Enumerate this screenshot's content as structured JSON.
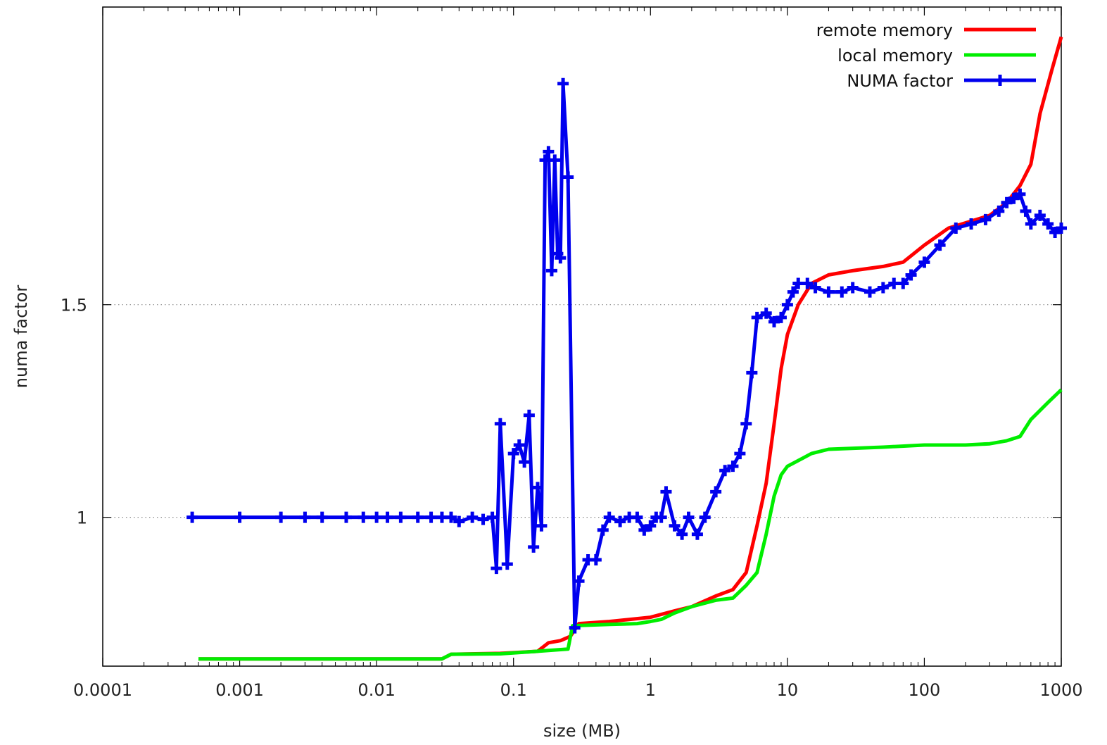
{
  "chart_data": {
    "type": "line",
    "title": "",
    "xlabel": "size (MB)",
    "ylabel": "numa factor",
    "x_scale": "log",
    "xlim": [
      0.0001,
      1000
    ],
    "ylim": [
      0.65,
      2.2
    ],
    "x_ticks": [
      0.0001,
      0.001,
      0.01,
      0.1,
      1,
      10,
      100,
      1000
    ],
    "x_tick_labels": [
      "0.0001",
      "0.001",
      "0.01",
      "0.1",
      "1",
      "10",
      "100",
      "1000"
    ],
    "y_ticks": [
      1,
      1.5
    ],
    "y_tick_labels": [
      "1",
      "1.5"
    ],
    "grid": "horizontal dotted at y ticks",
    "legend_position": "top-right",
    "series": [
      {
        "name": "remote memory",
        "color": "#ff0000",
        "x": [
          0.0005,
          0.03,
          0.035,
          0.08,
          0.15,
          0.18,
          0.22,
          0.26,
          0.3,
          0.5,
          1,
          1.5,
          2,
          3,
          4,
          5,
          6,
          7,
          8,
          9,
          10,
          12,
          15,
          20,
          30,
          50,
          70,
          100,
          150,
          300,
          400,
          500,
          600,
          700,
          850,
          1000
        ],
        "y": [
          0.667,
          0.667,
          0.678,
          0.68,
          0.685,
          0.705,
          0.71,
          0.72,
          0.75,
          0.755,
          0.765,
          0.78,
          0.79,
          0.815,
          0.83,
          0.87,
          0.98,
          1.08,
          1.22,
          1.35,
          1.43,
          1.5,
          1.55,
          1.57,
          1.58,
          1.59,
          1.6,
          1.64,
          1.68,
          1.71,
          1.74,
          1.78,
          1.83,
          1.95,
          2.05,
          2.13
        ]
      },
      {
        "name": "local memory",
        "color": "#00ee00",
        "x": [
          0.0005,
          0.03,
          0.035,
          0.08,
          0.15,
          0.25,
          0.27,
          0.5,
          0.8,
          1,
          1.2,
          1.5,
          2,
          3,
          4,
          5,
          6,
          7,
          8,
          9,
          10,
          15,
          20,
          50,
          100,
          200,
          300,
          400,
          500,
          600,
          800,
          1000
        ],
        "y": [
          0.667,
          0.667,
          0.678,
          0.679,
          0.685,
          0.69,
          0.745,
          0.748,
          0.75,
          0.755,
          0.76,
          0.775,
          0.79,
          0.805,
          0.81,
          0.84,
          0.87,
          0.96,
          1.05,
          1.1,
          1.12,
          1.15,
          1.16,
          1.165,
          1.17,
          1.17,
          1.173,
          1.18,
          1.19,
          1.23,
          1.27,
          1.3
        ]
      },
      {
        "name": "NUMA factor",
        "color": "#0000ee",
        "x": [
          0.00045,
          0.001,
          0.002,
          0.003,
          0.004,
          0.006,
          0.008,
          0.01,
          0.012,
          0.015,
          0.02,
          0.025,
          0.03,
          0.035,
          0.04,
          0.05,
          0.06,
          0.07,
          0.075,
          0.08,
          0.09,
          0.1,
          0.11,
          0.12,
          0.13,
          0.14,
          0.15,
          0.16,
          0.17,
          0.18,
          0.19,
          0.2,
          0.21,
          0.22,
          0.23,
          0.25,
          0.28,
          0.3,
          0.35,
          0.4,
          0.45,
          0.5,
          0.6,
          0.7,
          0.8,
          0.9,
          1,
          1.1,
          1.2,
          1.3,
          1.5,
          1.7,
          1.9,
          2.2,
          2.5,
          3,
          3.5,
          4,
          4.5,
          5,
          5.5,
          6,
          7,
          8,
          9,
          10,
          11,
          12,
          14,
          16,
          20,
          25,
          30,
          40,
          50,
          60,
          70,
          80,
          100,
          130,
          170,
          220,
          280,
          350,
          400,
          450,
          500,
          550,
          600,
          700,
          800,
          900,
          1000
        ],
        "y": [
          1.0,
          1.0,
          1.0,
          1.0,
          1.0,
          1.0,
          1.0,
          1.0,
          1.0,
          1.0,
          1.0,
          1.0,
          1.0,
          1.0,
          0.99,
          1.0,
          0.995,
          1.0,
          0.88,
          1.22,
          0.89,
          1.15,
          1.17,
          1.13,
          1.24,
          0.93,
          1.07,
          0.98,
          1.84,
          1.86,
          1.58,
          1.84,
          1.62,
          1.61,
          2.02,
          1.8,
          0.74,
          0.85,
          0.9,
          0.9,
          0.97,
          1.0,
          0.99,
          1.0,
          1.0,
          0.97,
          0.98,
          1.0,
          1.0,
          1.06,
          0.98,
          0.96,
          1.0,
          0.96,
          1.0,
          1.06,
          1.11,
          1.12,
          1.15,
          1.22,
          1.34,
          1.47,
          1.48,
          1.46,
          1.47,
          1.5,
          1.53,
          1.55,
          1.55,
          1.54,
          1.53,
          1.53,
          1.54,
          1.53,
          1.54,
          1.55,
          1.55,
          1.57,
          1.6,
          1.64,
          1.68,
          1.69,
          1.7,
          1.72,
          1.74,
          1.75,
          1.76,
          1.72,
          1.69,
          1.71,
          1.69,
          1.67,
          1.68
        ]
      }
    ]
  }
}
